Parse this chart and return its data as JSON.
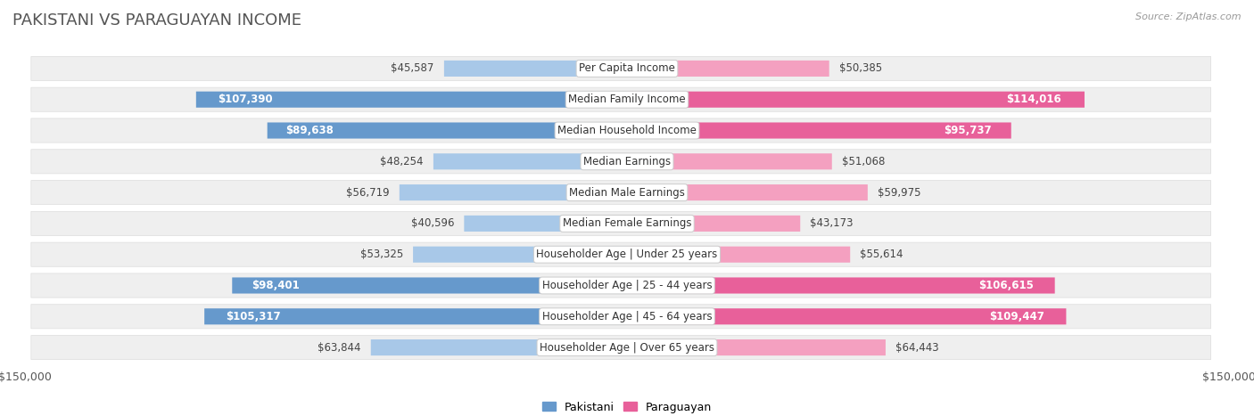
{
  "title": "PAKISTANI VS PARAGUAYAN INCOME",
  "source": "Source: ZipAtlas.com",
  "categories": [
    "Per Capita Income",
    "Median Family Income",
    "Median Household Income",
    "Median Earnings",
    "Median Male Earnings",
    "Median Female Earnings",
    "Householder Age | Under 25 years",
    "Householder Age | 25 - 44 years",
    "Householder Age | 45 - 64 years",
    "Householder Age | Over 65 years"
  ],
  "pakistani_values": [
    45587,
    107390,
    89638,
    48254,
    56719,
    40596,
    53325,
    98401,
    105317,
    63844
  ],
  "paraguayan_values": [
    50385,
    114016,
    95737,
    51068,
    59975,
    43173,
    55614,
    106615,
    109447,
    64443
  ],
  "pakistani_labels": [
    "$45,587",
    "$107,390",
    "$89,638",
    "$48,254",
    "$56,719",
    "$40,596",
    "$53,325",
    "$98,401",
    "$105,317",
    "$63,844"
  ],
  "paraguayan_labels": [
    "$50,385",
    "$114,016",
    "$95,737",
    "$51,068",
    "$59,975",
    "$43,173",
    "$55,614",
    "$106,615",
    "$109,447",
    "$64,443"
  ],
  "pakistani_color_light": "#a8c8e8",
  "pakistani_color_dark": "#6699cc",
  "paraguayan_color_light": "#f4a0c0",
  "paraguayan_color_dark": "#e8609a",
  "inside_label_threshold": 75000,
  "max_value": 150000,
  "background_color": "#ffffff",
  "row_bg": "#efefef",
  "row_border": "#dddddd",
  "title_fontsize": 13,
  "source_fontsize": 8,
  "bar_label_fontsize": 8.5,
  "category_fontsize": 8.5,
  "axis_fontsize": 9
}
